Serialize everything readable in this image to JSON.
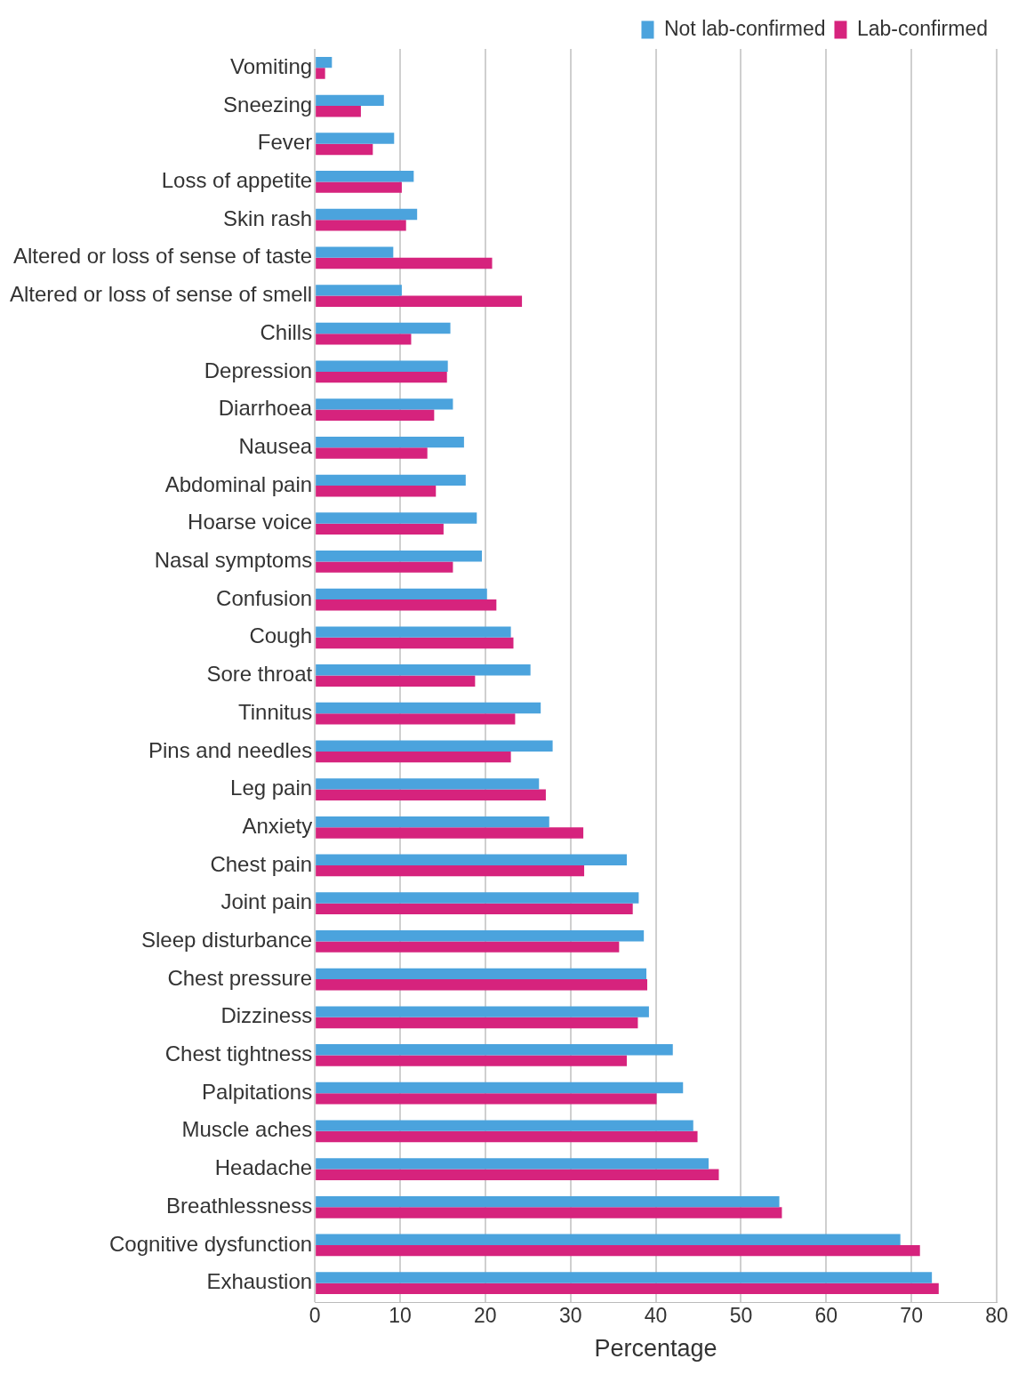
{
  "chart_data": {
    "type": "bar",
    "orientation": "horizontal",
    "xlabel": "Percentage",
    "categories": [
      "Vomiting",
      "Sneezing",
      "Fever",
      "Loss of appetite",
      "Skin rash",
      "Altered or loss of sense of taste",
      "Altered or loss of sense of smell",
      "Chills",
      "Depression",
      "Diarrhoea",
      "Nausea",
      "Abdominal pain",
      "Hoarse voice",
      "Nasal symptoms",
      "Confusion",
      "Cough",
      "Sore throat",
      "Tinnitus",
      "Pins and needles",
      "Leg pain",
      "Anxiety",
      "Chest pain",
      "Joint pain",
      "Sleep disturbance",
      "Chest pressure",
      "Dizziness",
      "Chest tightness",
      "Palpitations",
      "Muscle aches",
      "Headache",
      "Breathlessness",
      "Cognitive dysfunction",
      "Exhaustion"
    ],
    "series": [
      {
        "name": "Not lab-confirmed",
        "color": "#4ba3dd",
        "values": [
          2.0,
          8.1,
          9.3,
          11.6,
          12.0,
          9.2,
          10.2,
          15.9,
          15.6,
          16.2,
          17.5,
          17.7,
          19.0,
          19.6,
          20.2,
          23.0,
          25.3,
          26.5,
          27.9,
          26.3,
          27.5,
          36.6,
          38.0,
          38.6,
          38.9,
          39.2,
          42.0,
          43.2,
          44.4,
          46.2,
          54.5,
          68.7,
          72.4
        ]
      },
      {
        "name": "Lab-confirmed",
        "color": "#d6237d",
        "values": [
          1.2,
          5.4,
          6.8,
          10.2,
          10.7,
          20.8,
          24.3,
          11.3,
          15.5,
          14.0,
          13.2,
          14.2,
          15.1,
          16.2,
          21.3,
          23.3,
          18.8,
          23.5,
          23.0,
          27.1,
          31.5,
          31.6,
          37.3,
          35.7,
          39.0,
          37.9,
          36.6,
          40.1,
          44.9,
          47.4,
          54.8,
          71.0,
          73.2
        ]
      }
    ],
    "xlim": [
      0,
      80
    ],
    "xticks": [
      0,
      10,
      20,
      30,
      40,
      50,
      60,
      70,
      80
    ],
    "grid": "x",
    "legend": "top right"
  }
}
